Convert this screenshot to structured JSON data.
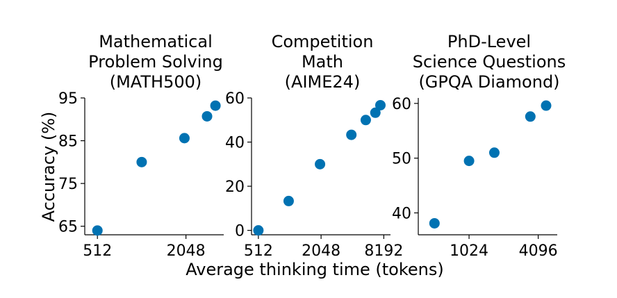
{
  "chart_data": [
    {
      "type": "scatter",
      "title": [
        "Mathematical",
        "Problem Solving",
        "(MATH500)"
      ],
      "x_scale": "log2",
      "x_ticks": [
        512,
        2048
      ],
      "x_tick_labels": [
        "512",
        "2048"
      ],
      "y_ticks": [
        65,
        75,
        85,
        95
      ],
      "y_tick_labels": [
        "65",
        "75",
        "85",
        "95"
      ],
      "xlim": [
        420,
        3700
      ],
      "ylim": [
        63,
        95
      ],
      "color": "#0072B2",
      "points": [
        {
          "x": 512,
          "y": 64
        },
        {
          "x": 1024,
          "y": 80
        },
        {
          "x": 2000,
          "y": 85.6
        },
        {
          "x": 2850,
          "y": 90.7
        },
        {
          "x": 3250,
          "y": 93.2
        }
      ]
    },
    {
      "type": "scatter",
      "title": [
        "Competition",
        "Math",
        "(AIME24)"
      ],
      "x_scale": "log2",
      "x_ticks": [
        512,
        2048,
        8192
      ],
      "x_tick_labels": [
        "512",
        "2048",
        "8192"
      ],
      "y_ticks": [
        0,
        20,
        40,
        60
      ],
      "y_tick_labels": [
        "0",
        "20",
        "40",
        "60"
      ],
      "xlim": [
        440,
        9500
      ],
      "ylim": [
        -2,
        60
      ],
      "color": "#0072B2",
      "points": [
        {
          "x": 512,
          "y": 0
        },
        {
          "x": 1000,
          "y": 13.3
        },
        {
          "x": 2000,
          "y": 30
        },
        {
          "x": 4000,
          "y": 43.3
        },
        {
          "x": 5500,
          "y": 50
        },
        {
          "x": 6800,
          "y": 53.3
        },
        {
          "x": 7600,
          "y": 56.7
        }
      ]
    },
    {
      "type": "scatter",
      "title": [
        "PhD-Level",
        "Science Questions",
        "(GPQA Diamond)"
      ],
      "x_scale": "log2",
      "x_ticks": [
        1024,
        4096
      ],
      "x_tick_labels": [
        "1024",
        "4096"
      ],
      "y_ticks": [
        40,
        50,
        60
      ],
      "y_tick_labels": [
        "40",
        "50",
        "60"
      ],
      "xlim": [
        370,
        6000
      ],
      "ylim": [
        36,
        61
      ],
      "color": "#0072B2",
      "points": [
        {
          "x": 512,
          "y": 38.1
        },
        {
          "x": 1024,
          "y": 49.5
        },
        {
          "x": 1700,
          "y": 51
        },
        {
          "x": 3500,
          "y": 57.6
        },
        {
          "x": 4800,
          "y": 59.6
        }
      ]
    }
  ],
  "shared": {
    "xlabel": "Average thinking time (tokens)",
    "ylabel": "Accuracy (%)"
  }
}
